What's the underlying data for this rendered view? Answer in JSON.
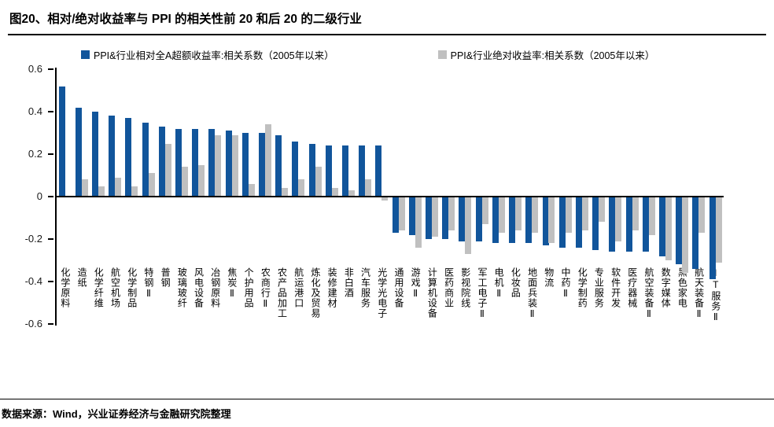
{
  "title": "图20、相对/绝对收益率与 PPI 的相关性前 20 和后 20 的二级行业",
  "footer": {
    "source_text": "数据来源：Wind，兴业证券经济与金融研究院整理"
  },
  "colors": {
    "relative_bar": "#11559B",
    "absolute_bar": "#C0C0C0",
    "axis": "#000000"
  },
  "chart_data": {
    "type": "bar",
    "title": "图20、相对/绝对收益率与 PPI 的相关性前 20 和后 20 的二级行业",
    "xlabel": "",
    "ylabel": "",
    "ylim": [
      -0.6,
      0.6
    ],
    "yticks": [
      "0.6",
      "0.4",
      "0.2",
      "0",
      "-0.2",
      "-0.4",
      "-0.6"
    ],
    "ytick_values": [
      0.6,
      0.4,
      0.2,
      0,
      -0.2,
      -0.4,
      -0.6
    ],
    "grid": false,
    "legend_position": "top",
    "categories": [
      "化学原料",
      "造纸",
      "化学纤维",
      "航空机场",
      "化学制品",
      "特钢Ⅱ",
      "普钢",
      "玻璃玻纤",
      "风电设备",
      "冶钢原料",
      "焦炭Ⅱ",
      "个护用品",
      "农商行Ⅱ",
      "农产品加工",
      "航运港口",
      "炼化及贸易",
      "装修建材",
      "非白酒",
      "汽车服务",
      "光学光电子",
      "通用设备",
      "游戏Ⅱ",
      "计算机设备",
      "医药商业",
      "影视院线",
      "军工电子Ⅱ",
      "电机Ⅱ",
      "化妆品",
      "地面兵装Ⅱ",
      "物流",
      "中药Ⅱ",
      "化学制药",
      "专业服务",
      "软件开发",
      "医疗器械",
      "航空装备Ⅱ",
      "数字媒体",
      "黑色家电",
      "航天装备Ⅱ",
      "IT服务Ⅱ"
    ],
    "series": [
      {
        "name": "PPI&行业相对全A超额收益率:相关系数（2005年以来）",
        "color": "#11559B",
        "values": [
          0.52,
          0.42,
          0.4,
          0.38,
          0.37,
          0.35,
          0.33,
          0.32,
          0.32,
          0.32,
          0.31,
          0.3,
          0.3,
          0.29,
          0.26,
          0.25,
          0.24,
          0.24,
          0.24,
          0.24,
          -0.17,
          -0.18,
          -0.2,
          -0.2,
          -0.21,
          -0.21,
          -0.22,
          -0.22,
          -0.22,
          -0.23,
          -0.24,
          -0.24,
          -0.25,
          -0.26,
          -0.26,
          -0.26,
          -0.28,
          -0.32,
          -0.34,
          -0.39
        ]
      },
      {
        "name": "PPI&行业绝对收益率:相关系数（2005年以来）",
        "color": "#C0C0C0",
        "values": [
          0.0,
          0.08,
          0.05,
          0.09,
          0.05,
          0.11,
          0.25,
          0.14,
          0.15,
          0.29,
          0.29,
          0.06,
          0.34,
          0.04,
          0.08,
          0.14,
          0.04,
          0.03,
          0.08,
          -0.02,
          -0.16,
          -0.24,
          -0.19,
          -0.16,
          -0.27,
          -0.13,
          -0.17,
          -0.16,
          -0.17,
          -0.22,
          -0.17,
          -0.16,
          -0.12,
          -0.21,
          -0.16,
          -0.18,
          -0.3,
          -0.36,
          -0.17,
          -0.31
        ]
      }
    ]
  }
}
